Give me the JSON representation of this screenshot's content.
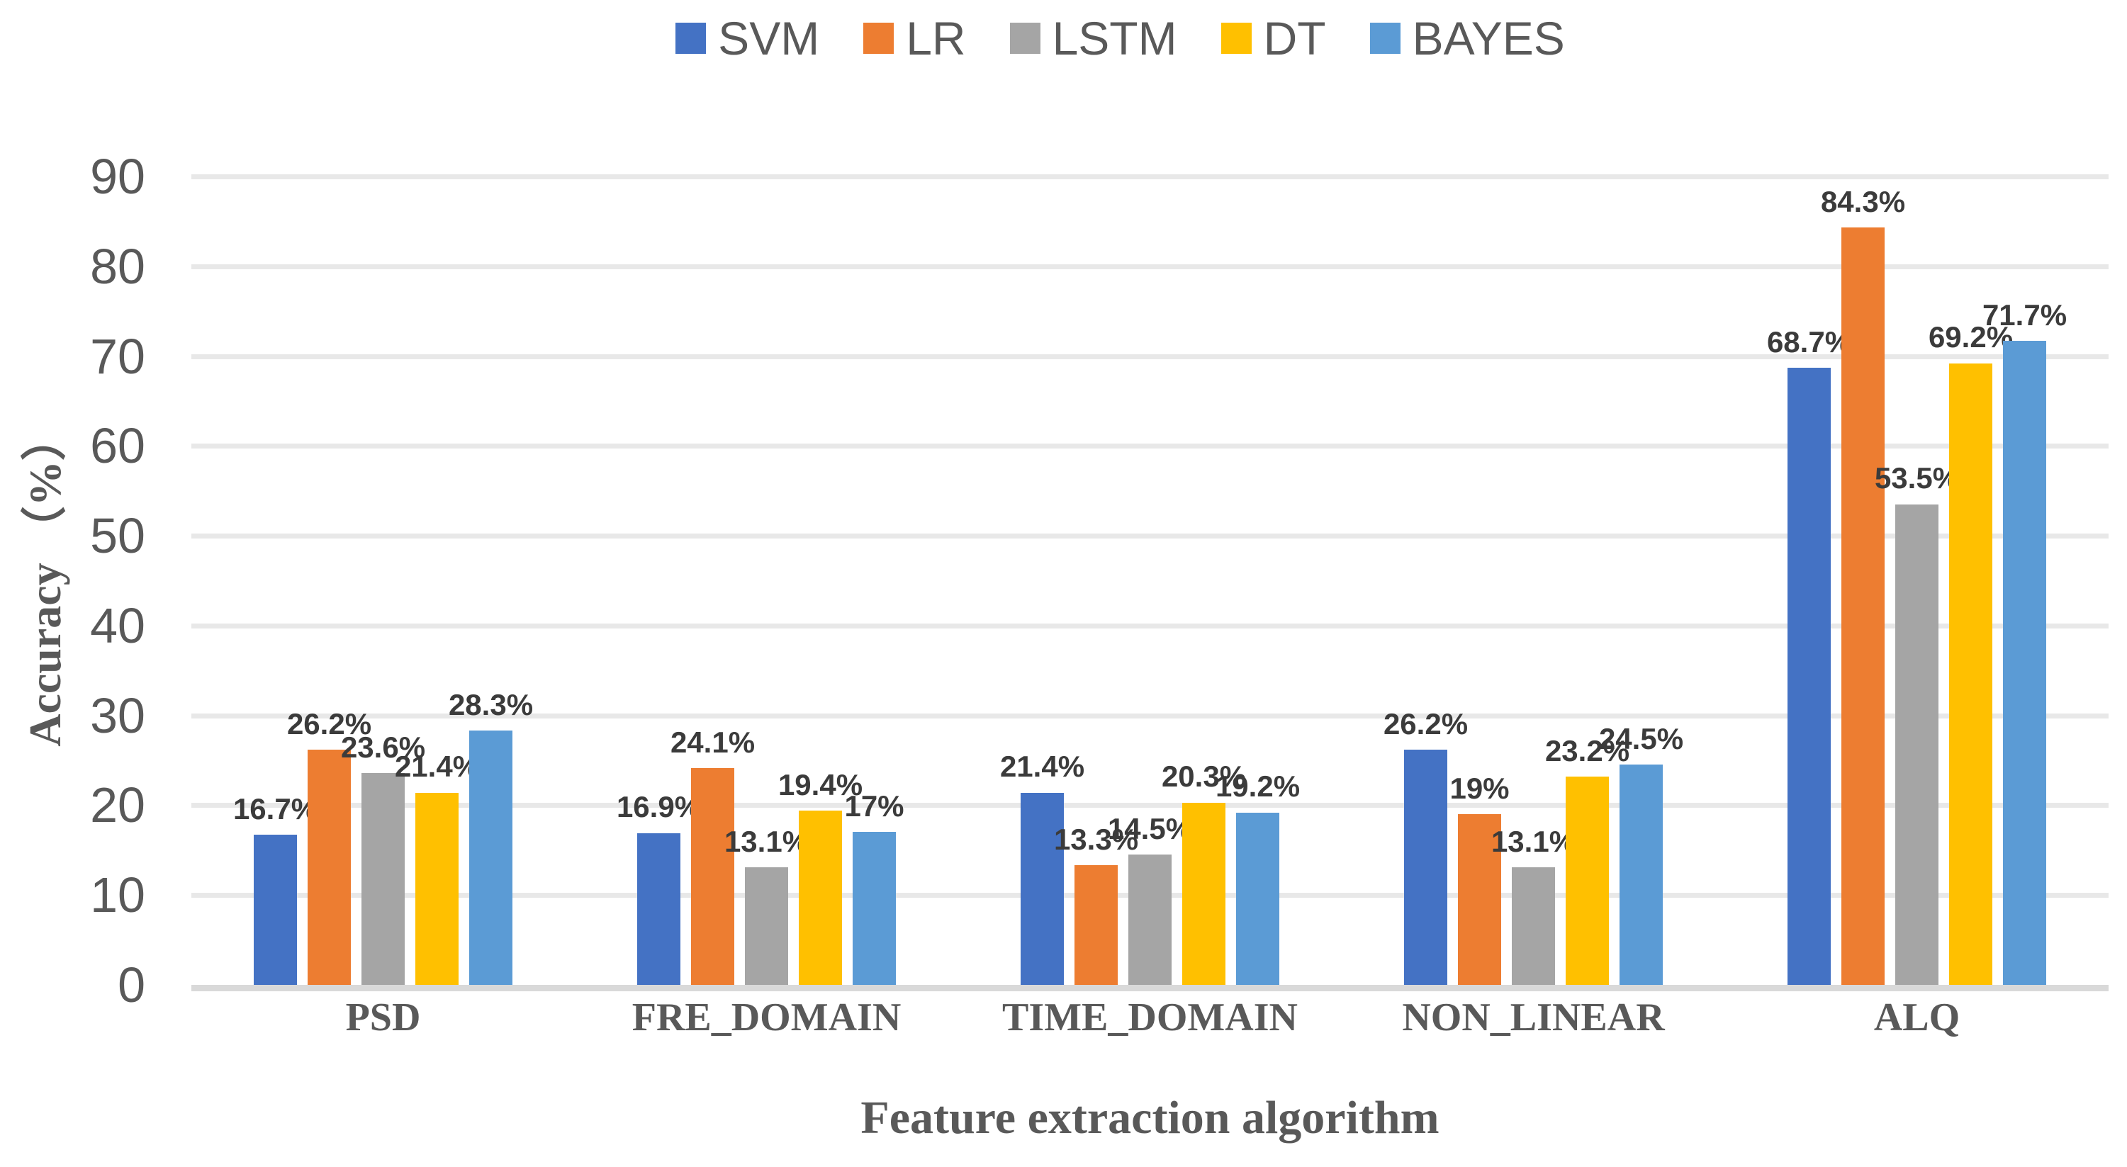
{
  "figure": {
    "background": "#ffffff",
    "text_color": "#595959",
    "data_label_color": "#3b3b3b",
    "gridline_color": "#e8e8e8",
    "axis_line_color": "#d9d9d9"
  },
  "chart_data": {
    "type": "bar",
    "title": "",
    "xlabel": "Feature extraction algorithm",
    "ylabel": "Accuracy （%）",
    "ylim": [
      0,
      90
    ],
    "ytick_step": 10,
    "yticks": [
      "0",
      "10",
      "20",
      "30",
      "40",
      "50",
      "60",
      "70",
      "80",
      "90"
    ],
    "grid": true,
    "legend_position": "top-center",
    "categories": [
      "PSD",
      "FRE_DOMAIN",
      "TIME_DOMAIN",
      "NON_LINEAR",
      "ALQ"
    ],
    "series": [
      {
        "name": "SVM",
        "color": "#4472C4",
        "values": [
          16.7,
          16.9,
          21.4,
          26.2,
          68.7
        ],
        "labels": [
          "16.7%",
          "16.9%",
          "21.4%",
          "26.2%",
          "68.7%"
        ]
      },
      {
        "name": "LR",
        "color": "#ED7D31",
        "values": [
          26.2,
          24.1,
          13.3,
          19,
          84.3
        ],
        "labels": [
          "26.2%",
          "24.1%",
          "13.3%",
          "19%",
          "84.3%"
        ]
      },
      {
        "name": "LSTM",
        "color": "#A5A5A5",
        "values": [
          23.6,
          13.1,
          14.5,
          13.1,
          53.5
        ],
        "labels": [
          "23.6%",
          "13.1%",
          "14.5%",
          "13.1%",
          "53.5%"
        ]
      },
      {
        "name": "DT",
        "color": "#FFC000",
        "values": [
          21.4,
          19.4,
          20.3,
          23.2,
          69.2
        ],
        "labels": [
          "21.4%",
          "19.4%",
          "20.3%",
          "23.2%",
          "69.2%"
        ]
      },
      {
        "name": "BAYES",
        "color": "#5B9BD5",
        "values": [
          28.3,
          17,
          19.2,
          24.5,
          71.7
        ],
        "labels": [
          "28.3%",
          "17%",
          "19.2%",
          "24.5%",
          "71.7%"
        ]
      }
    ]
  }
}
